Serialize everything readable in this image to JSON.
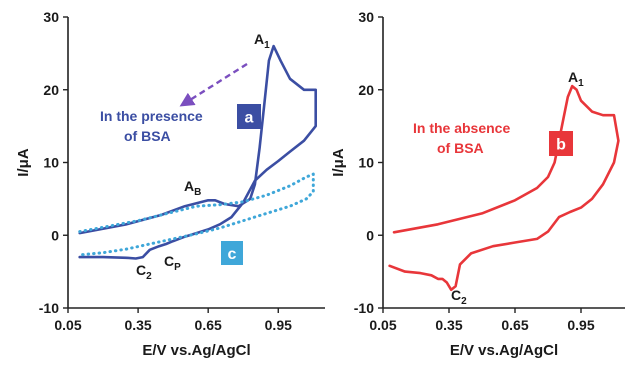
{
  "chart_data": [
    {
      "type": "line",
      "panel": "left",
      "xlabel": "E/V vs.Ag/AgCl",
      "ylabel": "I/μA",
      "xlim": [
        0.05,
        1.15
      ],
      "ylim": [
        -10,
        30
      ],
      "xticks": [
        "0.05",
        "0.35",
        "0.65",
        "0.95"
      ],
      "yticks": [
        "-10",
        "0",
        "10",
        "20",
        "30"
      ],
      "grid": false,
      "series": [
        {
          "badge": "a",
          "style": "solid",
          "color": "#3b4ea3",
          "x": [
            0.1,
            0.3,
            0.45,
            0.55,
            0.65,
            0.68,
            0.72,
            0.78,
            0.83,
            0.85,
            0.87,
            0.89,
            0.91,
            0.93,
            0.96,
            1.0,
            1.06,
            1.11,
            1.11,
            1.06,
            1.0,
            0.95,
            0.9,
            0.85,
            0.8,
            0.75,
            0.7,
            0.65,
            0.6,
            0.55,
            0.5,
            0.47,
            0.44,
            0.4,
            0.37,
            0.34,
            0.3,
            0.2,
            0.1
          ],
          "y": [
            0.3,
            1.5,
            2.8,
            4.0,
            4.8,
            4.8,
            4.3,
            4.0,
            5.0,
            7.0,
            12.0,
            18.0,
            24.0,
            26.0,
            24.0,
            21.5,
            20.0,
            20.0,
            15.0,
            13.0,
            11.5,
            10.2,
            9.0,
            7.5,
            4.5,
            2.5,
            1.5,
            0.8,
            0.3,
            -0.2,
            -0.8,
            -1.2,
            -1.5,
            -2.0,
            -3.0,
            -3.2,
            -3.1,
            -3.0,
            -3.0
          ]
        },
        {
          "badge": "c",
          "style": "dotted",
          "color": "#3fa7d9",
          "x": [
            0.1,
            0.35,
            0.6,
            0.7,
            0.8,
            0.9,
            1.0,
            1.07,
            1.1,
            1.1,
            1.07,
            1.0,
            0.9,
            0.8,
            0.7,
            0.6,
            0.5,
            0.4,
            0.3,
            0.2,
            0.1
          ],
          "y": [
            0.5,
            2.0,
            4.0,
            4.2,
            4.6,
            5.5,
            6.8,
            8.0,
            8.4,
            6.0,
            5.0,
            4.0,
            3.0,
            2.0,
            1.0,
            0.2,
            -0.5,
            -1.2,
            -1.9,
            -2.4,
            -2.7
          ]
        }
      ],
      "peaks": [
        "A",
        "A",
        "C",
        "C"
      ],
      "annotation": [
        "In the presence",
        "of BSA"
      ]
    },
    {
      "type": "line",
      "panel": "right",
      "xlabel": "E/V vs.Ag/AgCl",
      "ylabel": "I/μA",
      "xlim": [
        0.05,
        1.15
      ],
      "ylim": [
        -10,
        30
      ],
      "xticks": [
        "0.05",
        "0.35",
        "0.65",
        "0.95"
      ],
      "yticks": [
        "-10",
        "0",
        "10",
        "20",
        "30"
      ],
      "grid": false,
      "series": [
        {
          "badge": "b",
          "style": "solid",
          "color": "#e8363a",
          "x": [
            0.1,
            0.3,
            0.5,
            0.65,
            0.75,
            0.8,
            0.83,
            0.85,
            0.87,
            0.89,
            0.91,
            0.93,
            0.95,
            1.0,
            1.05,
            1.1,
            1.12,
            1.1,
            1.05,
            1.0,
            0.95,
            0.9,
            0.85,
            0.8,
            0.75,
            0.65,
            0.55,
            0.45,
            0.4,
            0.38,
            0.36,
            0.34,
            0.32,
            0.3,
            0.27,
            0.22,
            0.15,
            0.08
          ],
          "y": [
            0.4,
            1.5,
            3.0,
            4.8,
            6.5,
            8.0,
            10.0,
            13.0,
            16.0,
            19.0,
            20.5,
            20.0,
            18.5,
            17.0,
            16.5,
            16.5,
            13.0,
            10.0,
            7.0,
            5.0,
            3.8,
            3.2,
            2.5,
            0.5,
            -0.5,
            -1.0,
            -1.5,
            -2.5,
            -4.0,
            -7.0,
            -7.5,
            -6.5,
            -6.0,
            -6.0,
            -5.5,
            -5.2,
            -5.0,
            -4.2
          ]
        }
      ],
      "peaks": [
        "A",
        "C"
      ],
      "annotation": [
        "In the absence",
        "of BSA"
      ]
    }
  ]
}
